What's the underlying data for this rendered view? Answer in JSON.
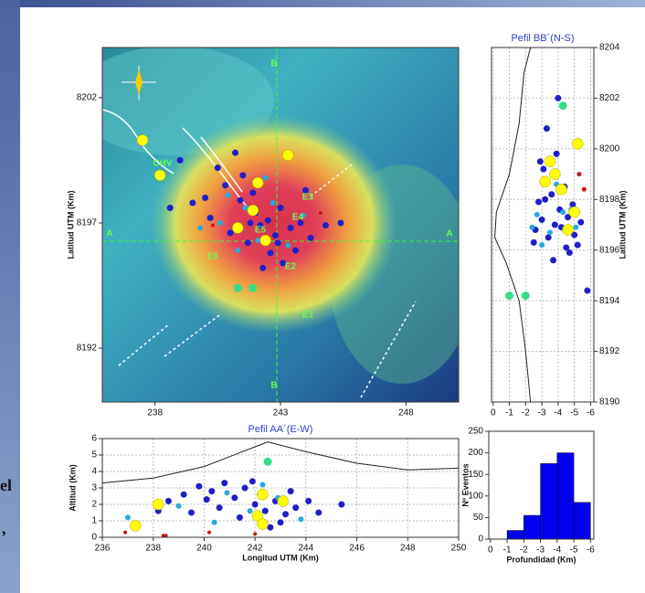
{
  "slide_fragments": [
    "el",
    ","
  ],
  "chart_data": [
    {
      "type": "scatter",
      "y_label": "Latitud UTM (Km)",
      "xlim": [
        235.9,
        250.1
      ],
      "ylim": [
        8189.85,
        8204
      ],
      "xticks": [
        238,
        243,
        248
      ],
      "yticks": [
        8192,
        8197,
        8202
      ],
      "annotations": [
        "B",
        "B",
        "A",
        "A",
        "CHV",
        "E1",
        "E2",
        "E3",
        "E4",
        "E5",
        "E6"
      ],
      "series": [
        {
          "color": "#1f1fc8",
          "marker_size": 3.5,
          "x": [
            239.5,
            240.2,
            240.8,
            241.0,
            241.4,
            241.7,
            242.0,
            242.2,
            242.5,
            242.8,
            243.0,
            243.4,
            243.8,
            244.2,
            244.8,
            245.4,
            240.5,
            241.2,
            241.9,
            242.6,
            243.1,
            242.3,
            241.5,
            240.0,
            239.0,
            238.6,
            244.0,
            242.9,
            243.6,
            241.8
          ],
          "y": [
            8197.8,
            8197.2,
            8198.5,
            8196.6,
            8197.9,
            8196.2,
            8197.4,
            8196.9,
            8197.1,
            8196.5,
            8197.6,
            8196.8,
            8197.0,
            8196.4,
            8196.9,
            8197.0,
            8199.2,
            8199.8,
            8198.2,
            8195.8,
            8195.4,
            8195.2,
            8198.9,
            8198.0,
            8199.5,
            8197.6,
            8198.3,
            8196.2,
            8195.9,
            8197.0
          ]
        },
        {
          "color": "#2aa8e0",
          "marker_size": 3,
          "x": [
            240.6,
            241.6,
            242.1,
            242.7,
            243.3,
            240.9,
            242.4,
            241.3,
            243.9,
            239.8
          ],
          "y": [
            8197.0,
            8197.6,
            8196.3,
            8197.8,
            8196.1,
            8198.1,
            8198.8,
            8195.9,
            8197.3,
            8196.8
          ]
        },
        {
          "color": "#ffff00",
          "marker_size": 6,
          "x": [
            237.5,
            238.2,
            243.3,
            242.1,
            241.9,
            241.3,
            242.4
          ],
          "y": [
            8200.3,
            8198.9,
            8199.7,
            8198.6,
            8197.5,
            8196.8,
            8196.3
          ]
        },
        {
          "color": "#33dd88",
          "marker_size": 4.5,
          "x": [
            241.3,
            241.9
          ],
          "y": [
            8194.4,
            8194.4
          ]
        },
        {
          "color": "#cc1111",
          "marker_size": 2,
          "x": [
            240.3,
            244.6
          ],
          "y": [
            8196.9,
            8197.4
          ]
        }
      ]
    },
    {
      "type": "scatter",
      "title": "Pefil BB´(N-S)",
      "y_label": "Latitud UTM (Km)",
      "xlim": [
        0.1,
        -6.2
      ],
      "ylim": [
        8190,
        8204
      ],
      "xticks": [
        0,
        -1,
        -2,
        -3,
        -4,
        -5,
        -6
      ],
      "yticks": [
        8190,
        8192,
        8194,
        8196,
        8198,
        8200,
        8202,
        8204
      ],
      "profile": {
        "x": [
          -2.3,
          -2.0,
          -1.6,
          -0.8,
          -0.1,
          -0.2,
          -1.0,
          -1.6,
          -1.9,
          -2.3
        ],
        "y": [
          8190,
          8192,
          8194,
          8195.5,
          8196.5,
          8197.5,
          8199,
          8201,
          8203,
          8204
        ]
      },
      "series": [
        {
          "color": "#1f1fc8",
          "marker_size": 3.5,
          "x": [
            -2.6,
            -3.0,
            -3.4,
            -3.8,
            -4.2,
            -4.6,
            -5.0,
            -5.4,
            -2.8,
            -3.6,
            -4.4,
            -5.2,
            -3.1,
            -3.9,
            -4.7,
            -2.5,
            -4.1,
            -3.3,
            -4.9,
            -3.7,
            -4.0,
            -5.8,
            -3.2,
            -4.5,
            -2.9
          ],
          "y": [
            8196.8,
            8197.2,
            8196.5,
            8197.0,
            8196.9,
            8197.3,
            8196.6,
            8197.1,
            8197.9,
            8198.2,
            8198.5,
            8196.2,
            8199.2,
            8199.8,
            8195.9,
            8196.3,
            8197.6,
            8200.8,
            8197.8,
            8195.6,
            8202.0,
            8194.4,
            8198.0,
            8196.1,
            8199.5
          ]
        },
        {
          "color": "#2aa8e0",
          "marker_size": 3,
          "x": [
            -2.7,
            -3.5,
            -4.3,
            -5.1,
            -3.0,
            -4.8,
            -3.9,
            -2.4
          ],
          "y": [
            8197.4,
            8196.7,
            8197.5,
            8196.9,
            8196.2,
            8197.6,
            8198.6,
            8196.9
          ]
        },
        {
          "color": "#ffff00",
          "marker_size": 6,
          "x": [
            -5.2,
            -3.5,
            -3.8,
            -3.2,
            -4.2,
            -5.0,
            -4.6
          ],
          "y": [
            8200.2,
            8199.5,
            8199.0,
            8198.7,
            8198.4,
            8197.5,
            8196.8
          ]
        },
        {
          "color": "#33dd88",
          "marker_size": 4.5,
          "x": [
            -1.0,
            -2.0,
            -4.3
          ],
          "y": [
            8194.2,
            8194.2,
            8201.7
          ]
        },
        {
          "color": "#cc1111",
          "marker_size": 2.5,
          "x": [
            -5.3,
            -5.6
          ],
          "y": [
            8199.0,
            8198.4
          ]
        }
      ]
    },
    {
      "type": "scatter",
      "title": "Pefil AA´(E-W)",
      "x_label": "Longitud UTM (Km)",
      "y_label": "Altitud (Km)",
      "xlim": [
        236,
        250
      ],
      "ylim": [
        0,
        6
      ],
      "xticks": [
        236,
        238,
        240,
        242,
        244,
        246,
        248,
        250
      ],
      "yticks": [
        0,
        1,
        2,
        3,
        4,
        5,
        6
      ],
      "profile": {
        "x": [
          236,
          238,
          240,
          242,
          242.5,
          244,
          246,
          248,
          250
        ],
        "y": [
          3.3,
          3.6,
          4.3,
          5.5,
          5.8,
          5.2,
          4.5,
          4.1,
          4.2
        ]
      },
      "series": [
        {
          "color": "#1f1fc8",
          "marker_size": 3.5,
          "x": [
            238.6,
            239.2,
            239.8,
            240.3,
            240.8,
            241.2,
            241.6,
            242.0,
            242.4,
            242.8,
            243.2,
            243.6,
            244.1,
            245.4,
            239.5,
            240.6,
            241.9,
            242.6,
            243.4,
            240.1,
            241.4,
            242.2,
            243.0,
            238.2,
            244.5
          ],
          "y": [
            2.2,
            2.6,
            3.1,
            2.8,
            3.3,
            2.4,
            3.0,
            2.0,
            1.6,
            2.2,
            1.4,
            1.8,
            2.2,
            2.0,
            1.5,
            1.8,
            3.4,
            0.6,
            2.8,
            2.3,
            1.2,
            2.6,
            0.9,
            1.6,
            1.5
          ]
        },
        {
          "color": "#2aa8e0",
          "marker_size": 3,
          "x": [
            237.0,
            239.0,
            240.9,
            241.8,
            242.9,
            243.8,
            242.3,
            240.4
          ],
          "y": [
            1.2,
            1.9,
            2.7,
            1.6,
            2.4,
            1.1,
            3.2,
            0.9
          ]
        },
        {
          "color": "#ffff00",
          "marker_size": 6,
          "x": [
            237.3,
            238.2,
            242.3,
            242.1,
            242.3,
            243.1
          ],
          "y": [
            0.7,
            2.0,
            2.6,
            1.3,
            0.8,
            2.2
          ]
        },
        {
          "color": "#33dd88",
          "marker_size": 4.5,
          "x": [
            242.5
          ],
          "y": [
            4.6
          ]
        },
        {
          "color": "#cc1111",
          "marker_size": 2,
          "x": [
            236.9,
            238.4,
            238.5,
            240.2,
            242.0
          ],
          "y": [
            0.3,
            0.1,
            0.1,
            0.3,
            0.2
          ]
        }
      ]
    },
    {
      "type": "histogram",
      "x_label": "Profundidad (Km)",
      "y_label": "Nº Eventos",
      "color": "#0000ee",
      "bins": [
        -1,
        -2,
        -3,
        -4,
        -5,
        -6
      ],
      "counts": [
        20,
        55,
        175,
        200,
        85
      ],
      "xlim": [
        0.1,
        -6.2
      ],
      "ylim": [
        0,
        250
      ],
      "xticks": [
        0,
        -1,
        -2,
        -3,
        -4,
        -5,
        -6
      ],
      "yticks": [
        0,
        50,
        100,
        150,
        200,
        250
      ]
    }
  ]
}
